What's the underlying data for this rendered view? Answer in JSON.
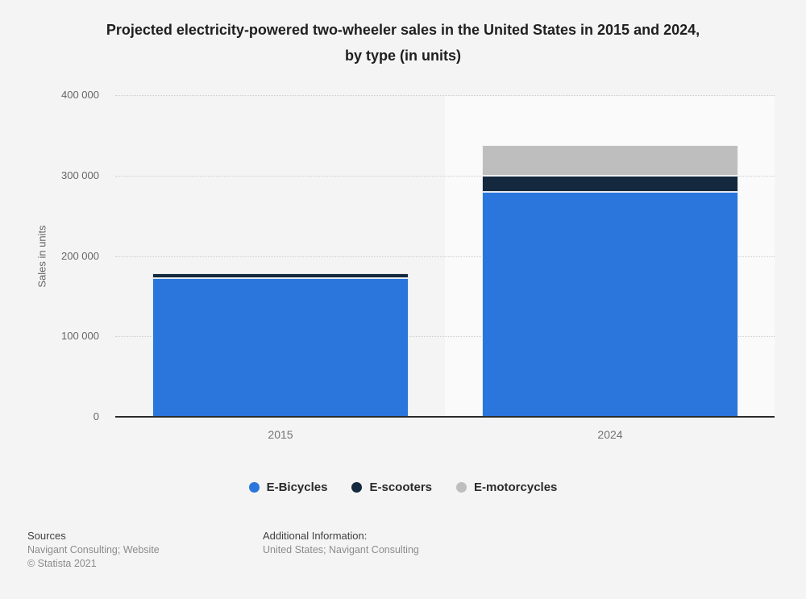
{
  "title": "Projected electricity-powered two-wheeler sales in the United States in 2015 and 2024,\nby type (in units)",
  "chart_data": {
    "type": "bar",
    "stacked": true,
    "title": "Projected electricity-powered two-wheeler sales in the United States in 2015 and 2024, by type (in units)",
    "categories": [
      "2015",
      "2024"
    ],
    "series": [
      {
        "name": "E-Bicycles",
        "color": "#2b76dd",
        "values": [
          172000,
          280000
        ]
      },
      {
        "name": "E-scooters",
        "color": "#14293d",
        "values": [
          6000,
          20000
        ]
      },
      {
        "name": "E-motorcycles",
        "color": "#bebebe",
        "values": [
          1000,
          38000
        ]
      }
    ],
    "xlabel": "",
    "ylabel": "Sales in units",
    "ylim": [
      0,
      400000
    ],
    "yticks": [
      0,
      100000,
      200000,
      300000,
      400000
    ],
    "ytick_labels": [
      "0",
      "100 000",
      "200 000",
      "300 000",
      "400 000"
    ],
    "grid": "horizontal-dotted",
    "legend_position": "bottom",
    "highlighted_category": "2024"
  },
  "footer": {
    "sources_label": "Sources",
    "sources_line": "Navigant Consulting; Website",
    "copyright": "© Statista 2021",
    "additional_label": "Additional Information:",
    "additional_line": "United States; Navigant Consulting"
  }
}
